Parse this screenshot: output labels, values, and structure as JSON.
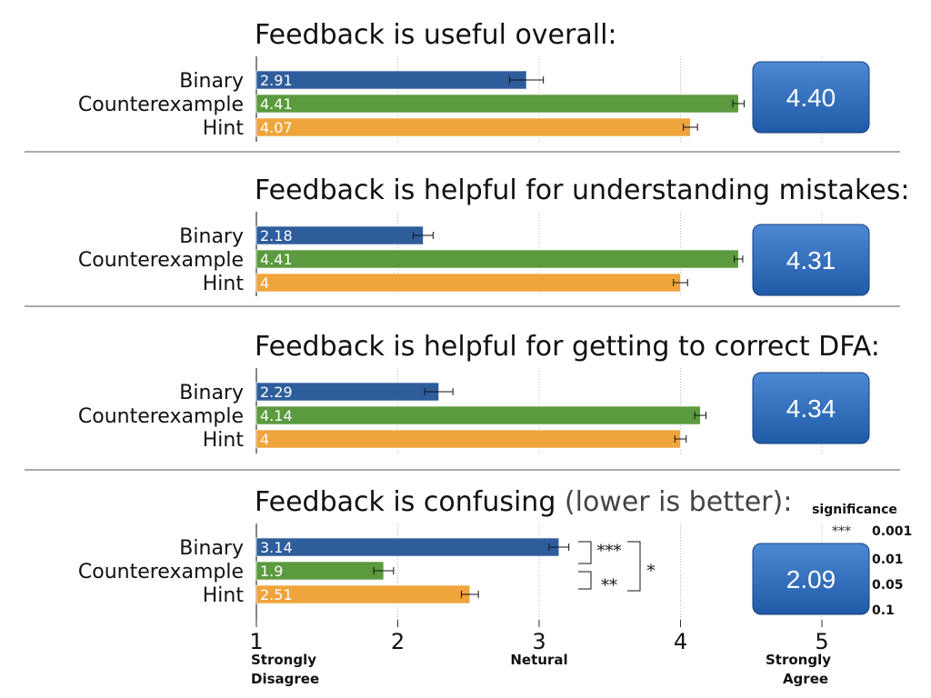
{
  "chart_data": {
    "type": "bar",
    "orientation": "horizontal",
    "categories": [
      "Binary",
      "Counterexample",
      "Hint"
    ],
    "xlim": [
      1,
      5
    ],
    "x_ticks": [
      {
        "value": 1,
        "label": "1",
        "sublabel": "Strongly\nDisagree"
      },
      {
        "value": 2,
        "label": "2",
        "sublabel": ""
      },
      {
        "value": 3,
        "label": "3",
        "sublabel": "Netural"
      },
      {
        "value": 4,
        "label": "4",
        "sublabel": ""
      },
      {
        "value": 5,
        "label": "5",
        "sublabel": "Strongly\nAgree"
      }
    ],
    "grid": true,
    "colors": {
      "Binary": "#2e5d9c",
      "Counterexample": "#5b9a3e",
      "Hint": "#f0a43c"
    },
    "panels": [
      {
        "title": "Feedback is useful overall:",
        "title_note": "",
        "values": [
          2.91,
          4.41,
          4.07
        ],
        "value_labels": [
          "2.91",
          "4.41",
          "4.07"
        ],
        "errors": [
          0.12,
          0.04,
          0.05
        ],
        "callout": "4.40"
      },
      {
        "title": "Feedback is helpful for understanding mistakes:",
        "title_note": "",
        "values": [
          2.18,
          4.41,
          4.0
        ],
        "value_labels": [
          "2.18",
          "4.41",
          "4"
        ],
        "errors": [
          0.07,
          0.03,
          0.05
        ],
        "callout": "4.31"
      },
      {
        "title": "Feedback is helpful for getting to correct DFA:",
        "title_note": "",
        "values": [
          2.29,
          4.14,
          4.0
        ],
        "value_labels": [
          "2.29",
          "4.14",
          "4"
        ],
        "errors": [
          0.1,
          0.04,
          0.04
        ],
        "callout": "4.34"
      },
      {
        "title": "Feedback is confusing",
        "title_note": "(lower is better):",
        "values": [
          3.14,
          1.9,
          2.51
        ],
        "value_labels": [
          "3.14",
          "1.9",
          "2.51"
        ],
        "errors": [
          0.07,
          0.07,
          0.06
        ],
        "callout": "2.09",
        "significance_marks": [
          {
            "pair": "Binary–Counterexample",
            "label": "***"
          },
          {
            "pair": "Counterexample–Hint",
            "label": "**"
          },
          {
            "pair": "Binary–Hint",
            "label": "*"
          }
        ]
      }
    ],
    "significance_legend": {
      "title": "significance",
      "entries": [
        {
          "symbol": "***",
          "value": "0.001"
        },
        {
          "symbol": "",
          "value": "0.01"
        },
        {
          "symbol": "",
          "value": "0.05"
        },
        {
          "symbol": "",
          "value": "0.1"
        }
      ]
    }
  }
}
